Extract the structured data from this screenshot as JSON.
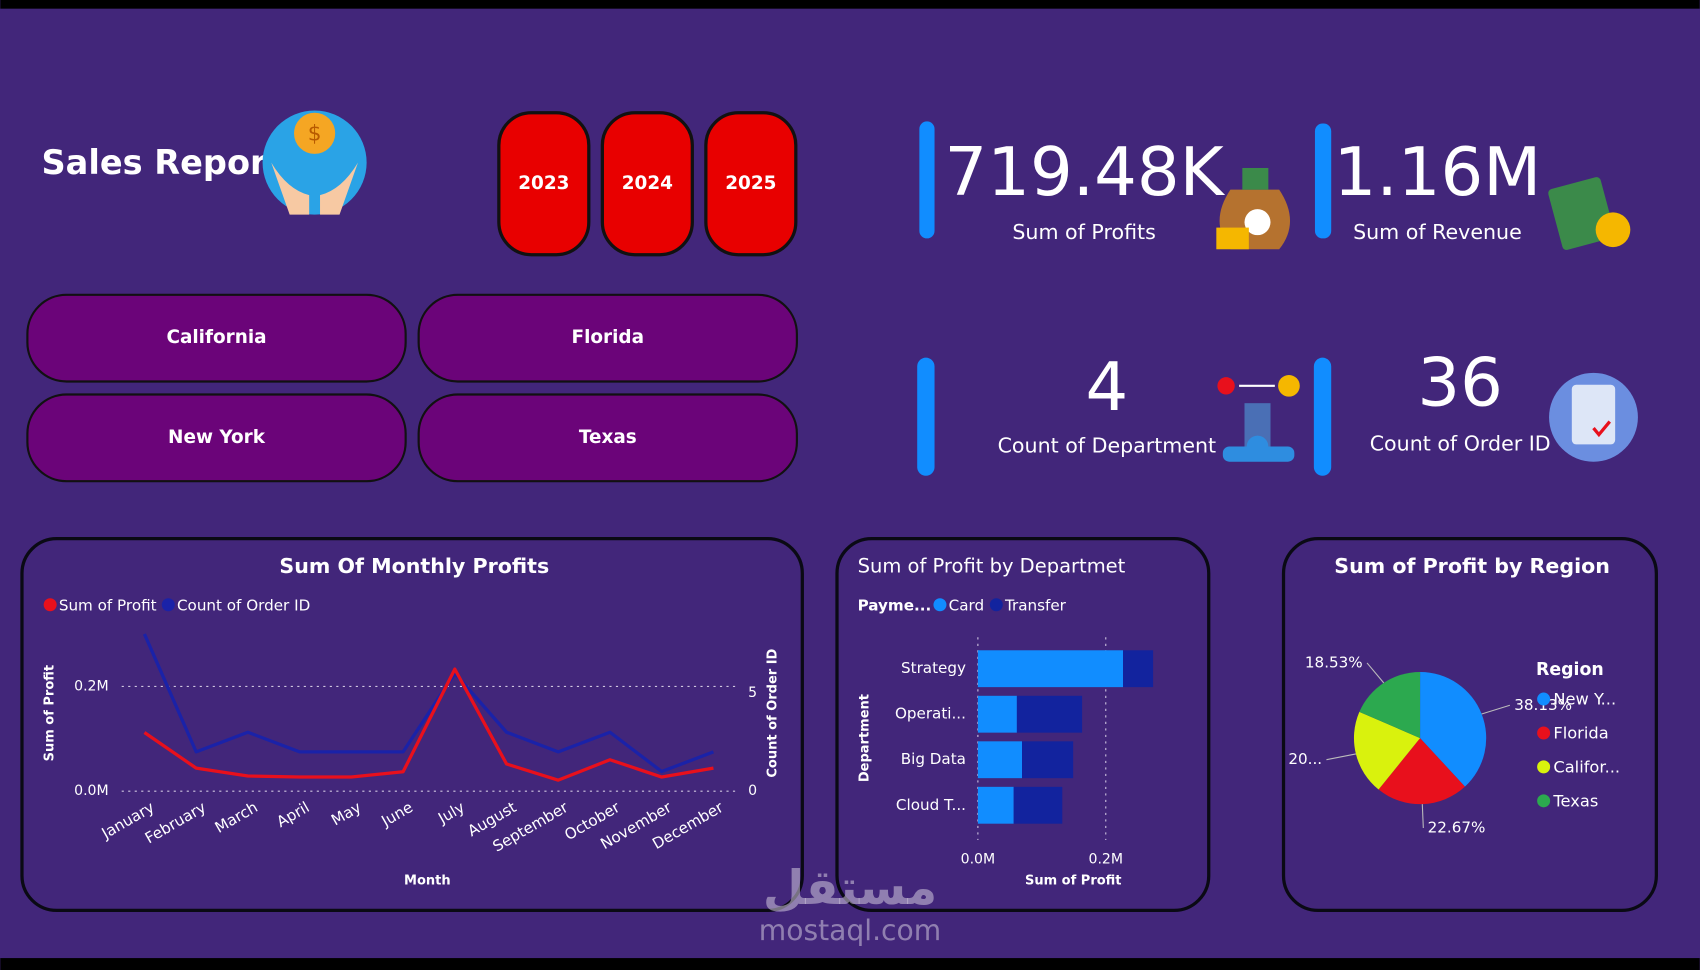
{
  "header": {
    "title": "Sales Report"
  },
  "year_buttons": [
    "2023",
    "2024",
    "2025"
  ],
  "region_buttons": [
    "California",
    "Florida",
    "New York",
    "Texas"
  ],
  "kpis": [
    {
      "value": "719.48K",
      "label": "Sum of Profits"
    },
    {
      "value": "1.16M",
      "label": "Sum of Revenue"
    },
    {
      "value": "4",
      "label": "Count of Department"
    },
    {
      "value": "36",
      "label": "Count of Order ID"
    }
  ],
  "watermark": {
    "logo": "مستقل",
    "text": "mostaql.com"
  },
  "chart_data": [
    {
      "type": "line",
      "title": "Sum Of Monthly Profits",
      "x_label": "Month",
      "y_label": "Sum of Profit",
      "y2_label": "Count of Order ID",
      "categories": [
        "January",
        "February",
        "March",
        "April",
        "May",
        "June",
        "July",
        "August",
        "September",
        "October",
        "November",
        "December"
      ],
      "series": [
        {
          "name": "Sum of Profit",
          "color": "#e8101c",
          "values": [
            0.112,
            0.044,
            0.029,
            0.027,
            0.027,
            0.037,
            0.233,
            0.052,
            0.021,
            0.06,
            0.027,
            0.044
          ]
        },
        {
          "name": "Count of Order ID",
          "color": "#1a22a8",
          "axis": "y2",
          "values": [
            8,
            2,
            3,
            2,
            2,
            2,
            6,
            3,
            2,
            3,
            1,
            2
          ]
        }
      ],
      "ylim": [
        0,
        0.3
      ],
      "yticks": [
        {
          "value": 0,
          "label": "0.0M"
        },
        {
          "value": 0.2,
          "label": "0.2M"
        }
      ],
      "y2lim": [
        0,
        8
      ],
      "y2ticks": [
        0,
        5
      ],
      "grid": true
    },
    {
      "type": "bar",
      "orientation": "horizontal",
      "stacked": true,
      "title": "Sum of Profit by Departmet",
      "legend_title": "Payme...",
      "x_label": "Sum of Profit",
      "y_label": "Department",
      "categories": [
        "Strategy",
        "Operati...",
        "Big Data",
        "Cloud T..."
      ],
      "series": [
        {
          "name": "Card",
          "color": "#118dff",
          "values": [
            0.227,
            0.061,
            0.069,
            0.056
          ]
        },
        {
          "name": "Transfer",
          "color": "#12239e",
          "values": [
            0.047,
            0.102,
            0.08,
            0.076
          ]
        }
      ],
      "xlim": [
        0,
        0.3
      ],
      "xticks": [
        {
          "value": 0,
          "label": "0.0M"
        },
        {
          "value": 0.2,
          "label": "0.2M"
        }
      ],
      "grid": true
    },
    {
      "type": "pie",
      "title": "Sum of Profit by Region",
      "legend_title": "Region",
      "categories": [
        "New Y...",
        "Florida",
        "Califor...",
        "Texas"
      ],
      "values": [
        38.13,
        22.67,
        20.67,
        18.53
      ],
      "value_labels": [
        "38.13%",
        "22.67%",
        "20...",
        "18.53%"
      ],
      "colors": [
        "#118dff",
        "#e8101c",
        "#d9f20d",
        "#2ca94f"
      ]
    }
  ]
}
